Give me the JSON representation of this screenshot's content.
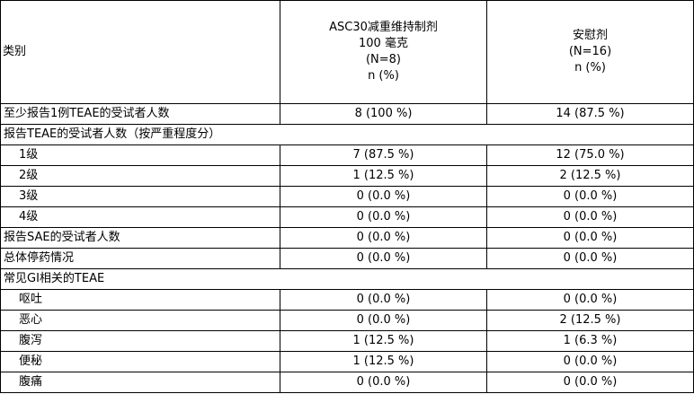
{
  "header": {
    "category": "类别",
    "col1": [
      "ASC30减重维持制剂",
      "100 毫克",
      "(N=8)",
      "n (%)"
    ],
    "col2": [
      "安慰剂",
      "(N=16)",
      "n (%)"
    ]
  },
  "rows": [
    {
      "label": "至少报告1例TEAE的受试者人数",
      "indent": false,
      "v1": "8 (100 %)",
      "v2": "14 (87.5 %)"
    },
    {
      "label": "报告TEAE的受试者人数（按严重程度分）",
      "indent": false,
      "section": true
    },
    {
      "label": "1级",
      "indent": true,
      "v1": "7 (87.5 %)",
      "v2": "12 (75.0 %)"
    },
    {
      "label": "2级",
      "indent": true,
      "v1": "1 (12.5 %)",
      "v2": "2 (12.5 %)"
    },
    {
      "label": "3级",
      "indent": true,
      "v1": "0 (0.0 %)",
      "v2": "0 (0.0 %)"
    },
    {
      "label": "4级",
      "indent": true,
      "v1": "0 (0.0 %)",
      "v2": "0 (0.0 %)"
    },
    {
      "label": "报告SAE的受试者人数",
      "indent": false,
      "v1": "0 (0.0 %)",
      "v2": "0 (0.0 %)"
    },
    {
      "label": "总体停药情况",
      "indent": false,
      "v1": "0 (0.0 %)",
      "v2": "0 (0.0 %)"
    },
    {
      "label": "常见GI相关的TEAE",
      "indent": false,
      "section": true
    },
    {
      "label": "呕吐",
      "indent": true,
      "v1": "0 (0.0 %)",
      "v2": "0 (0.0 %)"
    },
    {
      "label": "恶心",
      "indent": true,
      "v1": "0 (0.0 %)",
      "v2": "2 (12.5 %)"
    },
    {
      "label": "腹泻",
      "indent": true,
      "v1": "1 (12.5 %)",
      "v2": "1 (6.3 %)"
    },
    {
      "label": "便秘",
      "indent": true,
      "v1": "1 (12.5 %)",
      "v2": "0 (0.0 %)"
    },
    {
      "label": "腹痛",
      "indent": true,
      "v1": "0 (0.0 %)",
      "v2": "0 (0.0 %)"
    }
  ]
}
